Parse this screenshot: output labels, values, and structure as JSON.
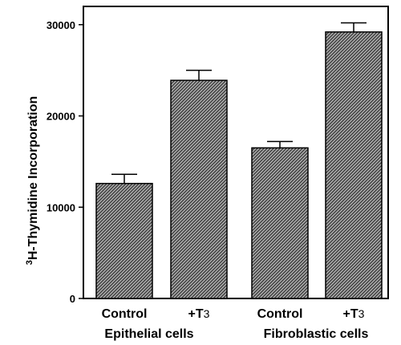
{
  "chart_data": {
    "type": "bar",
    "categories": [
      "Control",
      "+T3",
      "Control",
      "+T3"
    ],
    "groups": [
      "Epithelial cells",
      "Fibroblastic cells"
    ],
    "values": [
      12600,
      23900,
      16500,
      29200
    ],
    "errors": [
      1000,
      1100,
      700,
      1000
    ],
    "ylabel_superscript": "3",
    "ylabel_main": "H-Thymidine Incorporation",
    "ylim": [
      0,
      32000
    ],
    "yticks": [
      "0",
      "10000",
      "20000",
      "30000"
    ],
    "category_labels": [
      {
        "main": "Control",
        "sub": ""
      },
      {
        "main": "+T",
        "sub": "3"
      },
      {
        "main": "Control",
        "sub": ""
      },
      {
        "main": "+T",
        "sub": "3"
      }
    ],
    "bar_fill": "#2a2a2a",
    "grid": false,
    "legend": "none"
  }
}
